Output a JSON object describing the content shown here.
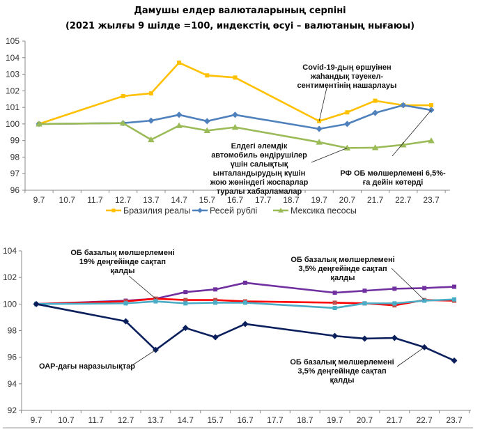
{
  "title": {
    "line1": "Дамушы елдер валюталарының серпіні",
    "line2": "(2021 жылғы 9 шілде =100, индекстің өсуі – валютаның нығаюы)"
  },
  "chart_data": [
    {
      "type": "line",
      "title": "Дамушы елдер валюталарының серпіні (2021 жылғы 9 шілде =100, индекстің өсуі – валютаның нығаюы)",
      "xlabel": "",
      "ylabel": "",
      "categories": [
        "9.7",
        "10.7",
        "11.7",
        "12.7",
        "13.7",
        "14.7",
        "15.7",
        "16.7",
        "17.7",
        "18.7",
        "19.7",
        "20.7",
        "21.7",
        "22.7",
        "23.7"
      ],
      "yticks": [
        "96",
        "97",
        "98",
        "99",
        "100",
        "101",
        "102",
        "103",
        "104",
        "105"
      ],
      "ylim": [
        96,
        105
      ],
      "grid": false,
      "legend_position": "bottom",
      "series": [
        {
          "name": "Бразилия реалы",
          "color": "#FFC000",
          "marker": "square",
          "values": [
            100,
            null,
            null,
            101.68,
            101.85,
            103.7,
            102.93,
            102.8,
            null,
            null,
            100.17,
            100.7,
            101.4,
            101.13,
            101.13
          ]
        },
        {
          "name": "Ресей рублі",
          "color": "#4F81BD",
          "marker": "diamond",
          "values": [
            100,
            null,
            null,
            100.05,
            100.2,
            100.55,
            100.17,
            100.55,
            null,
            null,
            99.7,
            100.0,
            100.67,
            101.13,
            100.84
          ]
        },
        {
          "name": "Мексика песосы",
          "color": "#9BBB59",
          "marker": "triangle",
          "values": [
            100,
            null,
            null,
            100.05,
            99.05,
            99.9,
            99.6,
            99.8,
            null,
            null,
            98.9,
            98.55,
            98.57,
            98.74,
            98.99
          ]
        }
      ],
      "annotations": [
        {
          "text": [
            "Covid-19-дың өршуінен",
            "жаһандық тәуекел-",
            "сентиментінің нашарлауы"
          ],
          "target": {
            "x": "19.7",
            "series": "Бразилия реалы"
          }
        },
        {
          "text": [
            "Елдегі әлемдік",
            "автомобиль өндірушілер",
            "үшін салықтық",
            "ынталандырудың күшін",
            "жою жөніндегі жоспарлар",
            "туралы хабарламалар"
          ],
          "target": {
            "x": "20.7",
            "series": "Мексика песосы"
          }
        },
        {
          "text": [
            "РФ ОБ мөлшерлемені 6,5%-",
            "ға дейін көтерді"
          ],
          "target": {
            "x": "23.7",
            "series": "Ресей рублі"
          }
        }
      ]
    },
    {
      "type": "line",
      "title": "",
      "xlabel": "",
      "ylabel": "",
      "categories": [
        "9.7",
        "10.7",
        "11.7",
        "12.7",
        "13.7",
        "14.7",
        "15.7",
        "16.7",
        "17.7",
        "18.7",
        "19.7",
        "20.7",
        "21.7",
        "22.7",
        "23.7"
      ],
      "yticks": [
        "92",
        "94",
        "96",
        "98",
        "100",
        "102",
        "104"
      ],
      "ylim": [
        92,
        104
      ],
      "grid": false,
      "legend_position": "none",
      "series": [
        {
          "name": "series-purple",
          "color": "#7030A0",
          "marker": "square",
          "values": [
            100,
            null,
            null,
            100.25,
            100.4,
            100.9,
            101.1,
            101.6,
            null,
            null,
            100.85,
            101.0,
            101.15,
            101.2,
            101.3
          ]
        },
        {
          "name": "series-red",
          "color": "#FF0000",
          "marker": "square",
          "values": [
            100,
            null,
            null,
            100.2,
            100.4,
            100.3,
            100.3,
            100.2,
            null,
            null,
            100.1,
            100.05,
            99.9,
            100.3,
            100.25
          ]
        },
        {
          "name": "series-cyan",
          "color": "#4BACC6",
          "marker": "square",
          "values": [
            100,
            null,
            null,
            100.05,
            100.2,
            100.05,
            100.1,
            100.1,
            null,
            null,
            99.7,
            100.05,
            100.05,
            100.25,
            100.35
          ]
        },
        {
          "name": "series-navy",
          "color": "#0B1F5C",
          "marker": "diamond",
          "values": [
            100,
            null,
            null,
            98.7,
            96.55,
            98.2,
            97.5,
            98.5,
            null,
            null,
            97.6,
            97.4,
            97.45,
            96.75,
            95.75
          ]
        }
      ],
      "annotations": [
        {
          "text": [
            "ОБ базалық мөлшерлемені",
            "19% деңгейінде сақтап",
            "қалды"
          ],
          "target": {
            "x": "13.7",
            "series": "series-red"
          }
        },
        {
          "text": [
            "ОБ базалық мөлшерлемені",
            "3,5% деңгейінде сақтап",
            "қалды"
          ],
          "target": {
            "x": "22.7",
            "series": "series-red"
          }
        },
        {
          "text": [
            "ОАР-дағы наразылықтар"
          ],
          "target": {
            "x": "13.7",
            "series": "series-navy"
          }
        },
        {
          "text": [
            "ОБ базалық мөлшерлемені",
            "3,5% деңгейінде сақтап",
            "қалды"
          ],
          "target": {
            "x": "22.7",
            "series": "series-navy"
          }
        }
      ]
    }
  ]
}
